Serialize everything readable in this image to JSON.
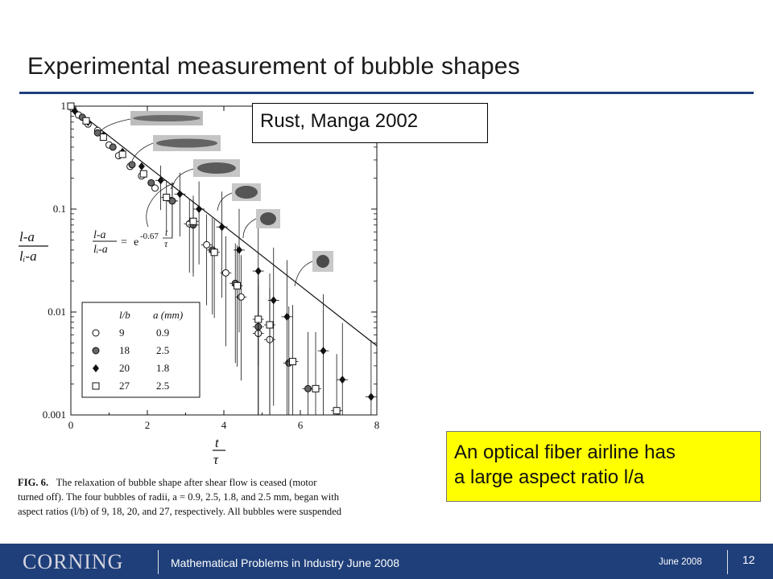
{
  "slide": {
    "title": "Experimental measurement of bubble shapes",
    "citation": "Rust, Manga 2002",
    "note": [
      "An optical fiber airline has",
      "a large aspect ratio l/a"
    ]
  },
  "figure": {
    "caption_label": "FIG. 6.",
    "caption_lines": [
      "The relaxation of bubble shape after shear flow is ceased (motor",
      "turned off). The four bubbles of radii, a = 0.9, 2.5, 1.8, and 2.5 mm, began with",
      "aspect ratios (l/b) of 9, 18, 20, and 27, respectively. All bubbles were suspended"
    ],
    "fit_equation": {
      "numerator": "l-a",
      "denominator": "lᵢ-a",
      "rhs_base": "e",
      "exponent": "-0.67",
      "frac_num": "t",
      "frac_den": "τ"
    }
  },
  "chart_data": {
    "type": "scatter",
    "y_scale": "log",
    "xlim": [
      0,
      8
    ],
    "ylim": [
      0.001,
      1
    ],
    "x_ticks": [
      "0",
      "2",
      "4",
      "6",
      "8"
    ],
    "y_ticks": [
      "0.001",
      "0.01",
      "0.1",
      "1"
    ],
    "xlabel": {
      "num": "t",
      "den": "τ"
    },
    "ylabel": {
      "num": "l-a",
      "den": "lᵢ-a"
    },
    "grid": false,
    "legend_position": "bottom-left",
    "legend_header": [
      "l/b",
      "a (mm)"
    ],
    "fit_line": {
      "x": [
        0,
        8
      ],
      "y": [
        1,
        0.0047
      ]
    },
    "series": [
      {
        "l_b": "9",
        "a_mm": "0.9",
        "marker": "open-circle",
        "points": [
          [
            0.05,
            0.95
          ],
          [
            0.2,
            0.82
          ],
          [
            0.45,
            0.67
          ],
          [
            0.7,
            0.58
          ],
          [
            1.0,
            0.42
          ],
          [
            1.25,
            0.33
          ],
          [
            1.55,
            0.26
          ],
          [
            1.85,
            0.21
          ],
          [
            2.2,
            0.16
          ],
          [
            2.65,
            0.12
          ],
          [
            3.1,
            0.072
          ],
          [
            3.55,
            0.045
          ],
          [
            4.05,
            0.024
          ],
          [
            4.45,
            0.014
          ],
          [
            4.9,
            0.0062
          ],
          [
            5.2,
            0.0054
          ]
        ]
      },
      {
        "l_b": "18",
        "a_mm": "2.5",
        "marker": "filled-circle",
        "points": [
          [
            0.3,
            0.78
          ],
          [
            0.7,
            0.55
          ],
          [
            1.1,
            0.4
          ],
          [
            1.6,
            0.27
          ],
          [
            2.1,
            0.18
          ],
          [
            2.65,
            0.12
          ],
          [
            3.2,
            0.07
          ],
          [
            3.7,
            0.04
          ],
          [
            4.3,
            0.019
          ],
          [
            4.9,
            0.0072
          ],
          [
            5.7,
            0.0032
          ],
          [
            6.2,
            0.0018
          ]
        ]
      },
      {
        "l_b": "20",
        "a_mm": "1.8",
        "marker": "filled-diamond",
        "points": [
          [
            0.1,
            0.9
          ],
          [
            0.45,
            0.7
          ],
          [
            0.85,
            0.52
          ],
          [
            1.35,
            0.36
          ],
          [
            1.85,
            0.26
          ],
          [
            2.35,
            0.19
          ],
          [
            2.85,
            0.14
          ],
          [
            3.35,
            0.1
          ],
          [
            3.95,
            0.067
          ],
          [
            4.4,
            0.04
          ],
          [
            4.9,
            0.025
          ],
          [
            5.3,
            0.013
          ],
          [
            5.65,
            0.009
          ],
          [
            6.6,
            0.0042
          ],
          [
            7.1,
            0.0022
          ],
          [
            7.85,
            0.0015
          ]
        ]
      },
      {
        "l_b": "27",
        "a_mm": "2.5",
        "marker": "open-square",
        "points": [
          [
            0.0,
            1.0
          ],
          [
            0.4,
            0.72
          ],
          [
            0.85,
            0.5
          ],
          [
            1.35,
            0.34
          ],
          [
            1.9,
            0.22
          ],
          [
            2.5,
            0.13
          ],
          [
            3.2,
            0.076
          ],
          [
            3.75,
            0.038
          ],
          [
            4.35,
            0.018
          ],
          [
            4.9,
            0.0085
          ],
          [
            5.2,
            0.0075
          ],
          [
            5.8,
            0.0033
          ],
          [
            6.4,
            0.0018
          ],
          [
            6.95,
            0.0011
          ]
        ]
      }
    ]
  },
  "footer": {
    "logo": "CORNING",
    "event": "Mathematical Problems in Industry  June 2008",
    "date": "June  2008",
    "page": "12"
  }
}
